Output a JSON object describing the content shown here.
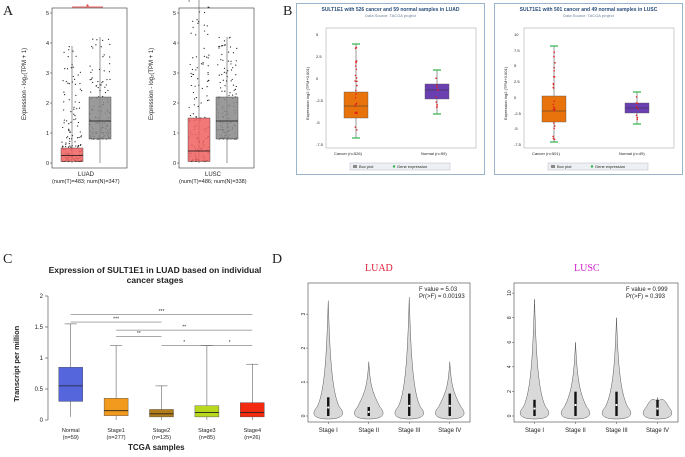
{
  "panel_labels": {
    "a": "A",
    "b": "B",
    "c": "C",
    "d": "D"
  },
  "panel_a": {
    "ylabel": "Expression - log₂(TPM + 1)",
    "ticks": [
      "0",
      "1",
      "2",
      "3",
      "4",
      "5"
    ],
    "star": "*",
    "luad": {
      "name": "LUAD",
      "counts": "(num(T)=483; num(N)=347)",
      "tumor": {
        "q1": 0.05,
        "median": 0.25,
        "q3": 0.5,
        "max": 3.9
      },
      "normal": {
        "q1": 0.8,
        "median": 1.4,
        "q3": 2.2,
        "max": 4.2
      }
    },
    "lusc": {
      "name": "LUSC",
      "counts": "(num(T)=486; num(N)=338)",
      "tumor": {
        "q1": 0.05,
        "median": 0.4,
        "q3": 1.5,
        "max": 5.9
      },
      "normal": {
        "q1": 0.8,
        "median": 1.4,
        "q3": 2.2,
        "max": 4.2
      }
    }
  },
  "panel_b": {
    "left": {
      "title": "SULT1E1 with 526 cancer and 59 normal samples in LUAD",
      "subtitle": "Data Source: TACGA project",
      "ylabel": "Expression log2 (TPM+0.001)",
      "ticks": [
        "5",
        "2.5",
        "0",
        "-2.5",
        "-5",
        "-7.5"
      ],
      "xlabels": [
        "Cancer (n=526)",
        "Normal (n=59)"
      ]
    },
    "right": {
      "title": "SULT1E1 with 501 cancer and 49 normal samples in LUSC",
      "subtitle": "Data Source: TACGA project",
      "ylabel": "Expression log2 (TPM+0.001)",
      "ticks": [
        "10",
        "7.5",
        "5",
        "2.5",
        "0",
        "-2.5",
        "-5",
        "-7.5"
      ],
      "xlabels": [
        "Cancer (n=501)",
        "Normal (n=49)"
      ]
    },
    "legend": {
      "box": "Box plot",
      "points": "Gene expression"
    }
  },
  "chart_data": [
    {
      "type": "box",
      "panel": "C",
      "title": "Expression of SULT1E1 in LUAD based on individual cancer stages",
      "title_line1": "Expression of SULT1E1 in LUAD based on individual",
      "title_line2": "cancer stages",
      "xlabel": "TCGA samples",
      "ylabel": "Transcript per million",
      "ylim": [
        0,
        2
      ],
      "yticks": [
        "0",
        "0.5",
        "1",
        "1.5",
        "2"
      ],
      "categories": [
        "Normal",
        "Stage1",
        "Stage2",
        "Stage3",
        "Stage4"
      ],
      "counts": [
        "(n=59)",
        "(n=277)",
        "(n=125)",
        "(n=85)",
        "(n=26)"
      ],
      "colors": [
        "#5566dd",
        "#f29a1d",
        "#b07d18",
        "#b8d81e",
        "#f22a10"
      ],
      "boxes": [
        {
          "min": 0.05,
          "q1": 0.3,
          "median": 0.55,
          "q3": 0.85,
          "max": 1.55
        },
        {
          "min": 0.0,
          "q1": 0.07,
          "median": 0.15,
          "q3": 0.35,
          "max": 1.2
        },
        {
          "min": 0.0,
          "q1": 0.05,
          "median": 0.1,
          "q3": 0.17,
          "max": 0.55
        },
        {
          "min": 0.0,
          "q1": 0.05,
          "median": 0.12,
          "q3": 0.23,
          "max": 1.2
        },
        {
          "min": 0.0,
          "q1": 0.05,
          "median": 0.12,
          "q3": 0.28,
          "max": 0.9
        }
      ],
      "significance": [
        "***",
        "***",
        "**",
        "**",
        "*",
        "*"
      ]
    },
    {
      "type": "violin",
      "panel": "D",
      "cohort": "LUAD",
      "categories": [
        "Stage I",
        "Stage II",
        "Stage III",
        "Stage IV"
      ],
      "yticks": [
        "0",
        "1",
        "2",
        "3"
      ],
      "ylim": [
        0,
        3.8
      ],
      "max": [
        3.4,
        1.6,
        3.5,
        1.6
      ],
      "median": [
        0.25,
        0.12,
        0.3,
        0.3
      ],
      "stats_f": "F value = 5.03",
      "stats_p": "Pr(>F) = 0.00193"
    },
    {
      "type": "violin",
      "panel": "D",
      "cohort": "LUSC",
      "categories": [
        "Stage I",
        "Stage II",
        "Stage III",
        "Stage IV"
      ],
      "yticks": [
        "0",
        "2",
        "4",
        "6",
        "8",
        "10"
      ],
      "ylim": [
        0,
        10.5
      ],
      "max": [
        9.5,
        6.0,
        8.0,
        1.5
      ],
      "median": [
        0.6,
        0.9,
        0.9,
        0.6
      ],
      "stats_f": "F value = 0.999",
      "stats_p": "Pr(>F) = 0.393"
    }
  ]
}
